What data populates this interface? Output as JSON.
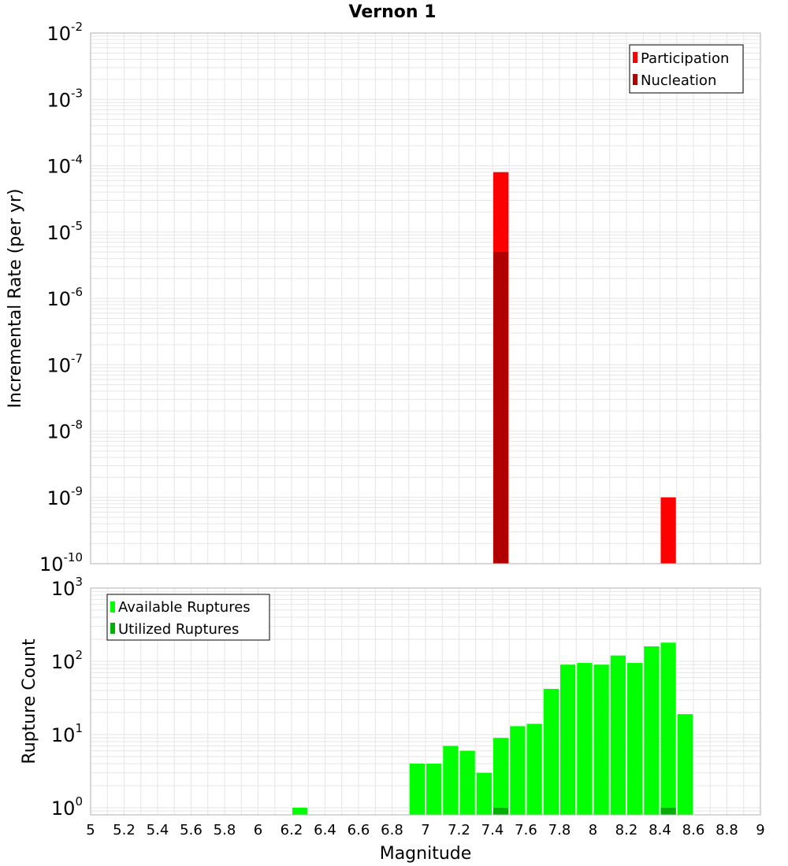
{
  "title": "Vernon 1",
  "colors": {
    "participation": "#ff0000",
    "nucleation": "#b00000",
    "available": "#00ff00",
    "utilized": "#00b000",
    "grid": "#e6e6e6",
    "frame": "#b0b0b0"
  },
  "chart_data": [
    {
      "type": "bar",
      "ylabel": "Incremental Rate (per yr)",
      "yscale": "log",
      "ylim": [
        1e-10,
        0.01
      ],
      "xlim": [
        5,
        9
      ],
      "bin_width": 0.1,
      "y_tick_labels": [
        {
          "base": "10",
          "exp": "-10"
        },
        {
          "base": "10",
          "exp": "-9"
        },
        {
          "base": "10",
          "exp": "-8"
        },
        {
          "base": "10",
          "exp": "-7"
        },
        {
          "base": "10",
          "exp": "-6"
        },
        {
          "base": "10",
          "exp": "-5"
        },
        {
          "base": "10",
          "exp": "-4"
        },
        {
          "base": "10",
          "exp": "-3"
        },
        {
          "base": "10",
          "exp": "-2"
        }
      ],
      "legend": {
        "position": "top-right",
        "entries": [
          "Participation",
          "Nucleation"
        ]
      },
      "series": [
        {
          "name": "Participation",
          "x": [
            7.45,
            8.45
          ],
          "values": [
            8e-05,
            1e-09
          ]
        },
        {
          "name": "Nucleation",
          "x": [
            7.45
          ],
          "values": [
            5e-06
          ]
        }
      ],
      "grid": true
    },
    {
      "type": "bar",
      "xlabel": "Magnitude",
      "ylabel": "Rupture Count",
      "yscale": "log",
      "ylim": [
        0.8,
        1000
      ],
      "xlim": [
        5,
        9
      ],
      "bin_width": 0.1,
      "x_tick_labels": [
        "5",
        "5.2",
        "5.4",
        "5.6",
        "5.8",
        "6",
        "6.2",
        "6.4",
        "6.6",
        "6.8",
        "7",
        "7.2",
        "7.4",
        "7.6",
        "7.8",
        "8",
        "8.2",
        "8.4",
        "8.6",
        "8.8",
        "9"
      ],
      "y_tick_labels": [
        {
          "base": "10",
          "exp": "0"
        },
        {
          "base": "10",
          "exp": "1"
        },
        {
          "base": "10",
          "exp": "2"
        },
        {
          "base": "10",
          "exp": "3"
        }
      ],
      "legend": {
        "position": "top-left",
        "entries": [
          "Available Ruptures",
          "Utilized Ruptures"
        ]
      },
      "series": [
        {
          "name": "Available Ruptures",
          "x": [
            6.25,
            6.95,
            7.05,
            7.15,
            7.25,
            7.35,
            7.45,
            7.55,
            7.65,
            7.75,
            7.85,
            7.95,
            8.05,
            8.15,
            8.25,
            8.35,
            8.45,
            8.55
          ],
          "values": [
            1,
            4,
            4,
            7,
            6,
            3,
            9,
            13,
            14,
            42,
            90,
            95,
            90,
            120,
            95,
            160,
            180,
            19
          ]
        },
        {
          "name": "Utilized Ruptures",
          "x": [
            7.45,
            8.45
          ],
          "values": [
            1,
            1
          ]
        }
      ],
      "grid": true
    }
  ]
}
